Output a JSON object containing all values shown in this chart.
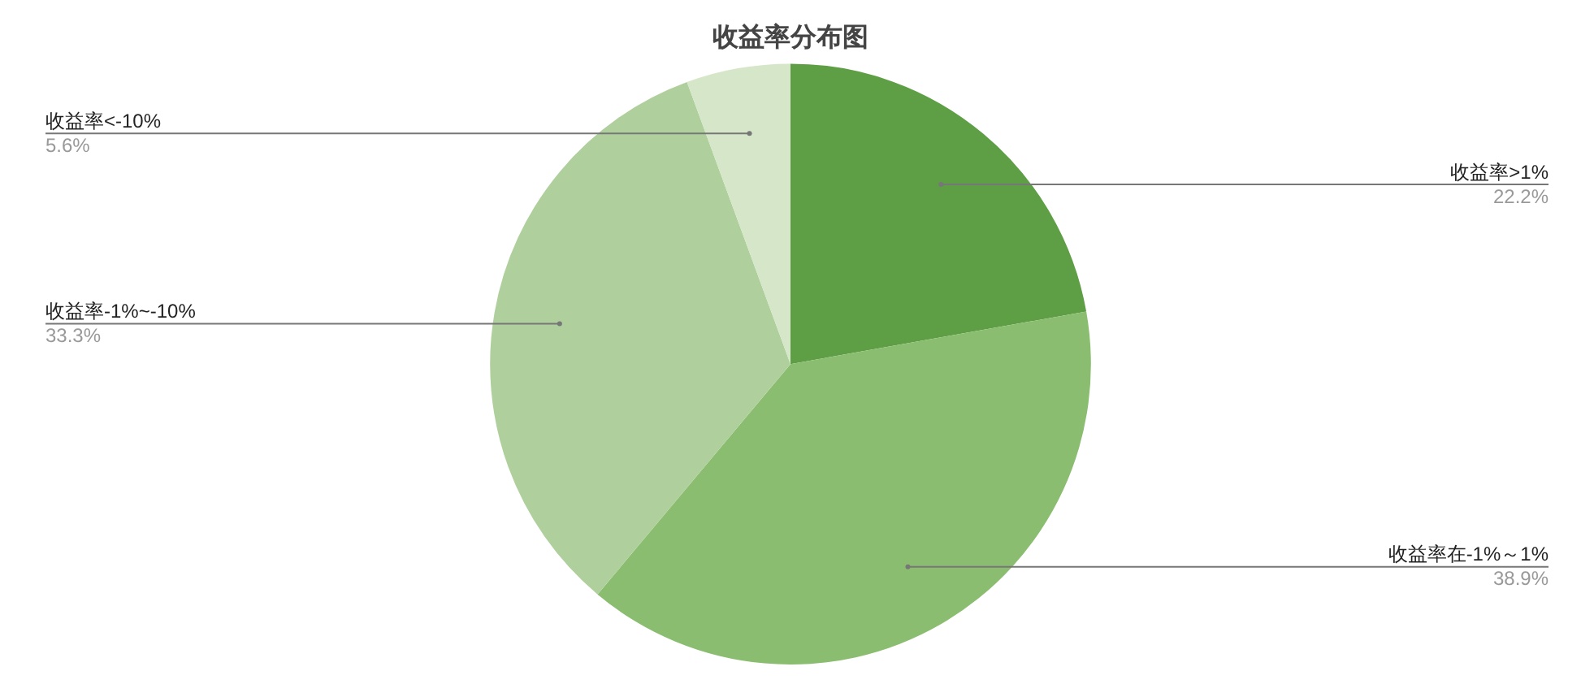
{
  "chart_data": {
    "type": "pie",
    "title": "收益率分布图",
    "categories": [
      "收益率>1%",
      "收益率在-1%～1%",
      "收益率-1%~-10%",
      "收益率<-10%"
    ],
    "values": [
      22.2,
      38.9,
      33.3,
      5.6
    ],
    "colors": [
      "#5e9e45",
      "#8abd70",
      "#afd09d",
      "#d5e6c9"
    ],
    "value_labels": [
      "22.2%",
      "38.9%",
      "33.3%",
      "5.6%"
    ],
    "legend": false
  }
}
